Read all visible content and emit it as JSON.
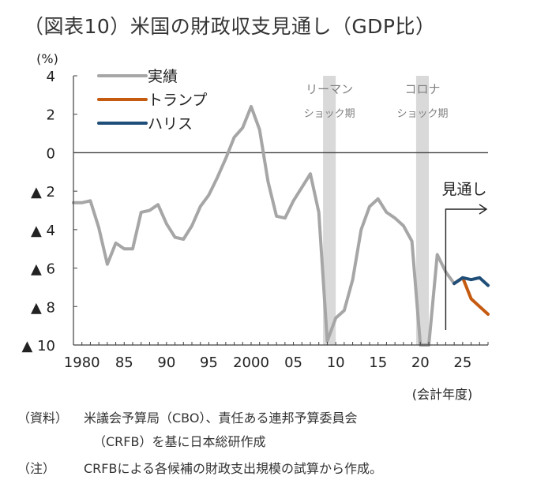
{
  "title": "（図表10）米国の財政収支見通し（GDP比）",
  "chart_data": {
    "type": "line",
    "y_unit": "(%)",
    "ylim": [
      -10,
      4
    ],
    "yticks": [
      4,
      2,
      0,
      -2,
      -4,
      -6,
      -8,
      -10
    ],
    "ytick_labels": [
      "4",
      "2",
      "0",
      "▲ 2",
      "▲ 4",
      "▲ 6",
      "▲ 8",
      "▲ 10"
    ],
    "xlim": [
      1979,
      2028
    ],
    "xticks": [
      1980,
      1985,
      1990,
      1995,
      2000,
      2005,
      2010,
      2015,
      2020,
      2025
    ],
    "xtick_labels": [
      "1980",
      "85",
      "90",
      "95",
      "2000",
      "05",
      "10",
      "15",
      "20",
      "25"
    ],
    "xlabel": "(会計年度)",
    "shaded_regions": [
      {
        "label_lines": [
          "リーマン",
          "ショック期"
        ],
        "x": [
          2008.5,
          2010
        ]
      },
      {
        "label_lines": [
          "コロナ",
          "ショック期"
        ],
        "x": [
          2019.5,
          2021
        ]
      }
    ],
    "forecast_annotation": {
      "label": "見通し",
      "start_x": 2023
    },
    "legend": {
      "placement": "top-left"
    },
    "series": [
      {
        "name": "実績",
        "color": "#a6a6a6",
        "x": [
          1979,
          1980,
          1981,
          1982,
          1983,
          1984,
          1985,
          1986,
          1987,
          1988,
          1989,
          1990,
          1991,
          1992,
          1993,
          1994,
          1995,
          1996,
          1997,
          1998,
          1999,
          2000,
          2001,
          2002,
          2003,
          2004,
          2005,
          2006,
          2007,
          2008,
          2009,
          2010,
          2011,
          2012,
          2013,
          2014,
          2015,
          2016,
          2017,
          2018,
          2019,
          2020,
          2021,
          2022,
          2023,
          2024
        ],
        "values": [
          -2.6,
          -2.6,
          -2.5,
          -3.9,
          -5.8,
          -4.7,
          -5.0,
          -5.0,
          -3.1,
          -3.0,
          -2.7,
          -3.7,
          -4.4,
          -4.5,
          -3.8,
          -2.8,
          -2.2,
          -1.3,
          -0.3,
          0.8,
          1.3,
          2.4,
          1.2,
          -1.5,
          -3.3,
          -3.4,
          -2.5,
          -1.8,
          -1.1,
          -3.1,
          -9.8,
          -8.6,
          -8.2,
          -6.6,
          -4.0,
          -2.8,
          -2.4,
          -3.1,
          -3.4,
          -3.8,
          -4.6,
          -10,
          -10,
          -5.3,
          -6.2,
          -6.8
        ]
      },
      {
        "name": "トランプ",
        "color": "#c55a11",
        "x": [
          2024,
          2025,
          2026,
          2027,
          2028
        ],
        "values": [
          -6.8,
          -6.5,
          -7.6,
          -8.0,
          -8.4
        ]
      },
      {
        "name": "ハリス",
        "color": "#1f4e79",
        "x": [
          2024,
          2025,
          2026,
          2027,
          2028
        ],
        "values": [
          -6.8,
          -6.5,
          -6.6,
          -6.5,
          -6.9
        ]
      }
    ]
  },
  "notes": [
    {
      "label": "（資料）",
      "lines": [
        "米議会予算局（CBO）、責任ある連邦予算委員会",
        "（CRFB）を基に日本総研作成"
      ]
    },
    {
      "label": "（注）",
      "lines": [
        "CRFBによる各候補の財政支出規模の試算から作成。"
      ]
    }
  ]
}
